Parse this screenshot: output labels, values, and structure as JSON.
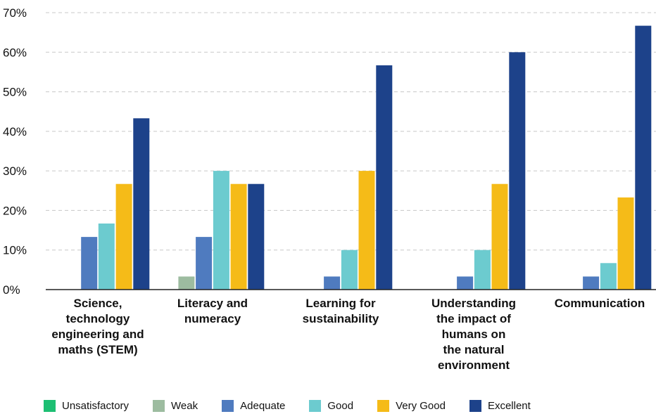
{
  "chart_data": {
    "type": "bar",
    "title": "",
    "xlabel": "",
    "ylabel": "",
    "ylim": [
      0,
      70
    ],
    "y_ticks": [
      "0%",
      "10%",
      "20%",
      "30%",
      "40%",
      "50%",
      "60%",
      "70%"
    ],
    "y_tick_values": [
      0,
      10,
      20,
      30,
      40,
      50,
      60,
      70
    ],
    "grid": "horizontal dashed",
    "legend_position": "bottom",
    "categories": [
      [
        "Science,",
        "technology",
        "engineering and",
        "maths (STEM)"
      ],
      [
        "Literacy and",
        "numeracy"
      ],
      [
        "Learning for",
        "sustainability"
      ],
      [
        "Understanding",
        "the impact of",
        "humans on",
        "the natural",
        "environment"
      ],
      [
        "Communication"
      ]
    ],
    "series": [
      {
        "name": "Unsatisfactory",
        "color": "#1dbf73",
        "values": [
          0,
          0,
          0,
          0,
          0
        ]
      },
      {
        "name": "Weak",
        "color": "#9dbca0",
        "values": [
          0,
          3.3,
          0,
          0,
          0
        ]
      },
      {
        "name": "Adequate",
        "color": "#4f7bbf",
        "values": [
          13.3,
          13.3,
          3.3,
          3.3,
          3.3
        ]
      },
      {
        "name": "Good",
        "color": "#6ccbcf",
        "values": [
          16.7,
          30,
          10,
          10,
          6.7
        ]
      },
      {
        "name": "Very Good",
        "color": "#f5bb18",
        "values": [
          26.7,
          26.7,
          30,
          26.7,
          23.3
        ]
      },
      {
        "name": "Excellent",
        "color": "#1d428a",
        "values": [
          43.3,
          26.7,
          56.7,
          60,
          66.7
        ]
      }
    ]
  }
}
